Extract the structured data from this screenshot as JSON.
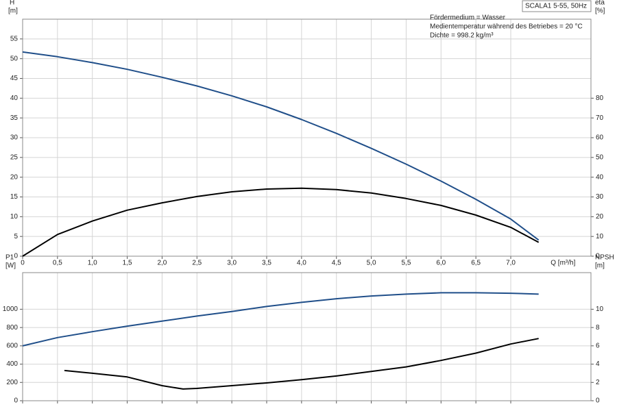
{
  "chart_data": [
    {
      "type": "line",
      "ylabel": "H",
      "yunit": "[m]",
      "y2label": "eta",
      "y2unit": "[%]",
      "xlabel": "Q [m³/h]",
      "model": "SCALA1 5-55, 50Hz",
      "annotations": [
        "Fördermedium = Wasser",
        "Medientemperatur während des Betriebes = 20 °C",
        "Dichte = 998.2 kg/m³"
      ],
      "xlim": [
        0,
        8.15
      ],
      "xticks": [
        0,
        {
          "value": 0.5,
          "label": "0,5"
        },
        {
          "value": 1,
          "label": "1,0"
        },
        {
          "value": 1.5,
          "label": "1,5"
        },
        {
          "value": 2,
          "label": "2,0"
        },
        {
          "value": 2.5,
          "label": "2,5"
        },
        {
          "value": 3,
          "label": "3,0"
        },
        {
          "value": 3.5,
          "label": "3,5"
        },
        {
          "value": 4,
          "label": "4,0"
        },
        {
          "value": 4.5,
          "label": "4,5"
        },
        {
          "value": 5,
          "label": "5,0"
        },
        {
          "value": 5.5,
          "label": "5,5"
        },
        {
          "value": 6,
          "label": "6,0"
        },
        {
          "value": 6.5,
          "label": "6,5"
        },
        {
          "value": 7,
          "label": "7,0"
        }
      ],
      "ylim": [
        0,
        60
      ],
      "yticks": [
        0,
        5,
        10,
        15,
        20,
        25,
        30,
        35,
        40,
        45,
        50,
        55
      ],
      "y2lim": [
        0,
        120
      ],
      "y2ticks": [
        0,
        10,
        20,
        30,
        40,
        50,
        60,
        70,
        80
      ],
      "grid": true,
      "series": [
        {
          "name": "H",
          "color": "#1f4e89",
          "x": [
            0,
            0.5,
            1,
            1.5,
            2,
            2.5,
            3,
            3.5,
            4,
            4.5,
            5,
            5.5,
            6,
            6.5,
            7,
            7.4
          ],
          "values": [
            51.7,
            50.5,
            49.0,
            47.3,
            45.3,
            43.1,
            40.6,
            37.8,
            34.6,
            31.1,
            27.3,
            23.3,
            19.0,
            14.4,
            9.4,
            4.1
          ]
        },
        {
          "name": "eta",
          "color": "#000000",
          "axis": "y2",
          "x": [
            0,
            0.5,
            1,
            1.5,
            2,
            2.5,
            3,
            3.5,
            4,
            4.5,
            5,
            5.5,
            6,
            6.5,
            7,
            7.4
          ],
          "values": [
            0,
            11,
            17.8,
            23.3,
            27,
            30.2,
            32.6,
            34,
            34.4,
            33.7,
            32,
            29.2,
            25.7,
            20.8,
            14.6,
            7
          ]
        }
      ]
    },
    {
      "type": "line",
      "ylabel": "P1",
      "yunit": "[W]",
      "y2label": "NPSH",
      "y2unit": "[m]",
      "xlim": [
        0,
        8.15
      ],
      "ylim": [
        0,
        1400
      ],
      "yticks": [
        0,
        200,
        400,
        600,
        800,
        1000
      ],
      "y2lim": [
        0,
        14
      ],
      "y2ticks": [
        0,
        2,
        4,
        6,
        8,
        10
      ],
      "grid": true,
      "series": [
        {
          "name": "P1",
          "color": "#1f4e89",
          "x": [
            0,
            0.5,
            1,
            1.5,
            2,
            2.5,
            3,
            3.5,
            4,
            4.5,
            5,
            5.5,
            6,
            6.5,
            7,
            7.4
          ],
          "values": [
            600,
            690,
            755,
            815,
            870,
            925,
            975,
            1030,
            1075,
            1115,
            1145,
            1165,
            1180,
            1180,
            1175,
            1165
          ]
        },
        {
          "name": "NPSH",
          "color": "#000000",
          "axis": "y2",
          "x": [
            0.6,
            1,
            1.5,
            2,
            2.3,
            2.5,
            3,
            3.5,
            4,
            4.5,
            5,
            5.5,
            6,
            6.5,
            7,
            7.4
          ],
          "values": [
            3.3,
            3.0,
            2.6,
            1.65,
            1.28,
            1.35,
            1.65,
            1.95,
            2.3,
            2.7,
            3.2,
            3.7,
            4.4,
            5.2,
            6.2,
            6.8
          ]
        }
      ]
    }
  ]
}
